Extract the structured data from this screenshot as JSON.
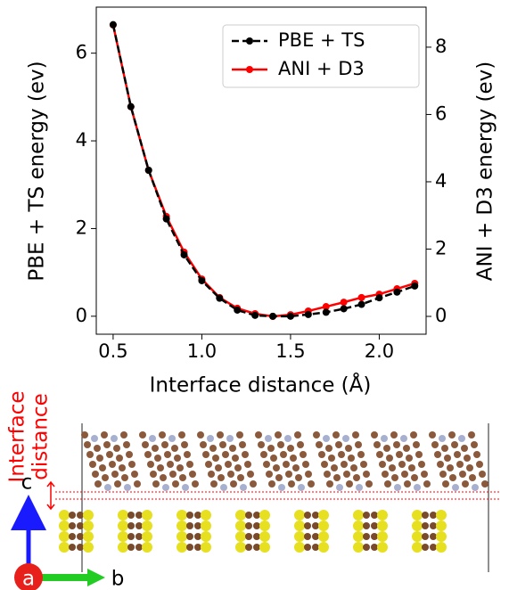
{
  "chart_data": {
    "type": "line",
    "xlabel": "Interface distance (Å)",
    "ylabel": "PBE + TS energy (ev)",
    "y2label": "ANI + D3 energy (ev)",
    "x": [
      0.5,
      0.6,
      0.7,
      0.8,
      0.9,
      1.0,
      1.1,
      1.2,
      1.3,
      1.4,
      1.5,
      1.6,
      1.7,
      1.8,
      1.9,
      2.0,
      2.1,
      2.2
    ],
    "series": [
      {
        "name": "PBE + TS",
        "color": "#000000",
        "dashed": true,
        "values": [
          6.65,
          4.78,
          3.33,
          2.22,
          1.4,
          0.81,
          0.41,
          0.14,
          0.02,
          0.0,
          0.0,
          0.04,
          0.09,
          0.17,
          0.27,
          0.42,
          0.55,
          0.69
        ]
      },
      {
        "name": "ANI + D3",
        "color": "#ff0000",
        "axis": "y2",
        "values": [
          8.66,
          6.23,
          4.34,
          2.97,
          1.91,
          1.11,
          0.56,
          0.24,
          0.08,
          0.0,
          0.05,
          0.16,
          0.29,
          0.42,
          0.56,
          0.66,
          0.82,
          0.98
        ]
      }
    ],
    "xlim": [
      0.405,
      2.264
    ],
    "xticks": [
      0.5,
      {
        "value": 1.0,
        "label": "1.0"
      },
      1.5,
      {
        "value": 2.0,
        "label": "2.0"
      }
    ],
    "ylim": [
      -0.41,
      7.05
    ],
    "yticks": [
      0,
      2,
      4,
      6
    ],
    "y2lim": [
      -0.53,
      9.19
    ],
    "y2ticks": [
      0,
      2,
      4,
      6,
      8
    ],
    "legend": "upper right"
  },
  "structure": {
    "interface_label": [
      "Interface",
      "distance"
    ],
    "axis_labels": {
      "c": "c",
      "a": "a",
      "b": "b"
    }
  }
}
